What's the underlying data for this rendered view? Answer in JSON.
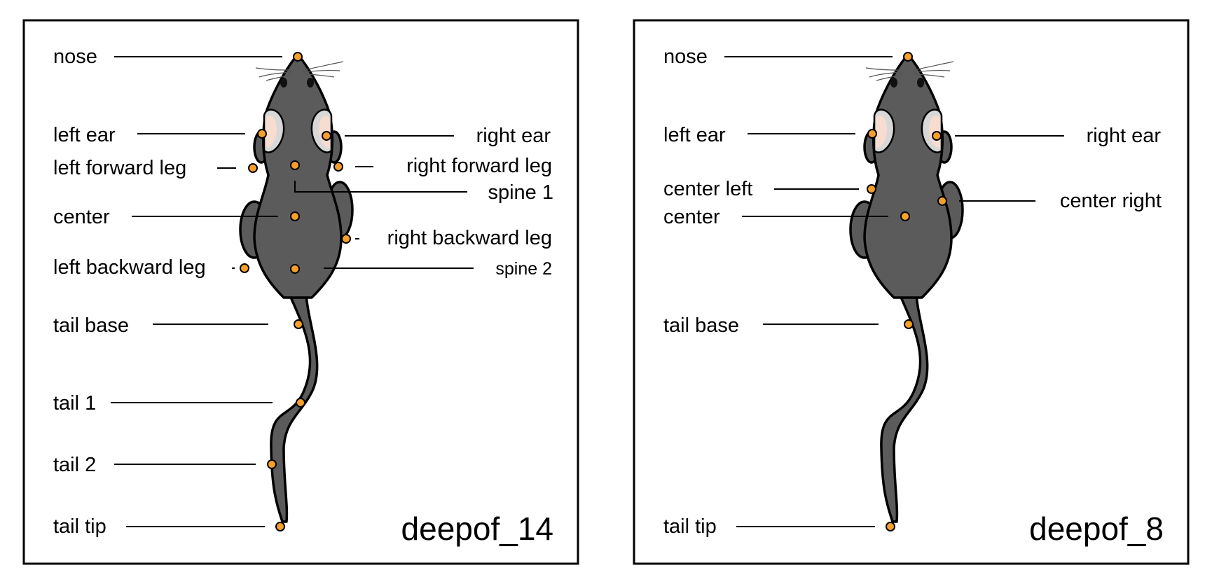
{
  "panels": [
    {
      "title": "deepof_14",
      "labels": {
        "nose": "nose",
        "left_ear": "left ear",
        "right_ear": "right ear",
        "left_forward_leg": "left forward leg",
        "right_forward_leg": "right forward leg",
        "spine_1": "spine 1",
        "center": "center",
        "right_backward_leg": "right backward leg",
        "left_backward_leg": "left backward leg",
        "spine_2": "spine 2",
        "tail_base": "tail base",
        "tail_1": "tail 1",
        "tail_2": "tail 2",
        "tail_tip": "tail tip"
      }
    },
    {
      "title": "deepof_8",
      "labels": {
        "nose": "nose",
        "left_ear": "left ear",
        "right_ear": "right ear",
        "center_left": "center left",
        "center": "center",
        "center_right": "center right",
        "tail_base": "tail base",
        "tail_tip": "tail tip"
      }
    }
  ],
  "colors": {
    "body": "#5b5b5b",
    "keypoint": "#f5a02a",
    "ear_inner": "#f7dcd0",
    "ear_outer": "#d8d8d8"
  }
}
